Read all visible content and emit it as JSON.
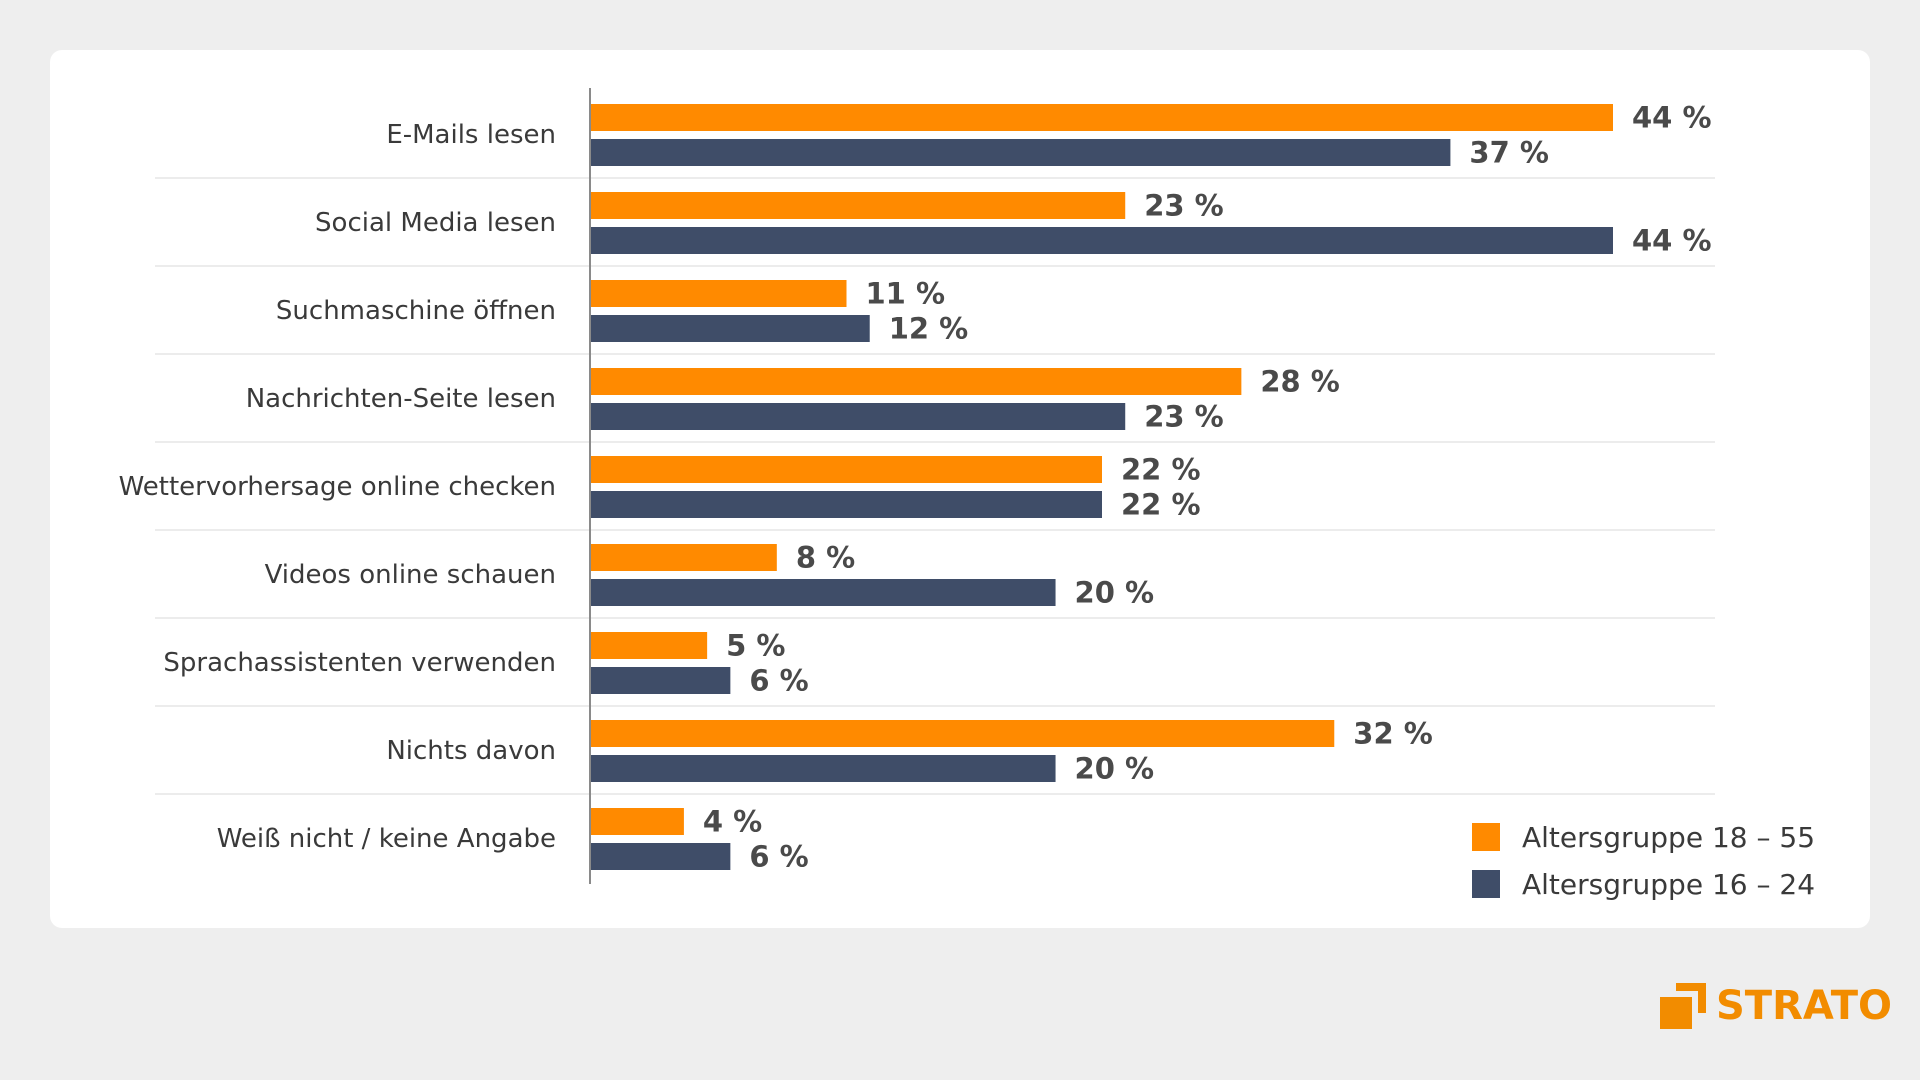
{
  "chart_data": {
    "type": "bar",
    "orientation": "horizontal",
    "categories": [
      "E-Mails lesen",
      "Social Media lesen",
      "Suchmaschine öffnen",
      "Nachrichten-Seite lesen",
      "Wettervorhersage online checken",
      "Videos online schauen",
      "Sprachassistenten verwenden",
      "Nichts davon",
      "Weiß nicht / keine Angabe"
    ],
    "series": [
      {
        "name": "Altersgruppe 18 – 55",
        "color": "#ff8a00",
        "values": [
          44,
          23,
          11,
          28,
          22,
          8,
          5,
          32,
          4
        ],
        "labels": [
          "44 %",
          "23 %",
          "11 %",
          "28 %",
          "22 %",
          "8 %",
          "5 %",
          "32 %",
          "4 %"
        ]
      },
      {
        "name": "Altersgruppe 16 – 24",
        "color": "#3f4d68",
        "values": [
          37,
          44,
          12,
          23,
          22,
          20,
          6,
          20,
          6
        ],
        "labels": [
          "37 %",
          "44 %",
          "12 %",
          "23 %",
          "22 %",
          "20 %",
          "6 %",
          "20 %",
          "6 %"
        ]
      }
    ],
    "unit": "%",
    "xlim": [
      0,
      44
    ],
    "legend_position": "bottom-right",
    "grid": false
  },
  "brand": {
    "logo_text": "STRATO",
    "color": "#f28c00"
  }
}
